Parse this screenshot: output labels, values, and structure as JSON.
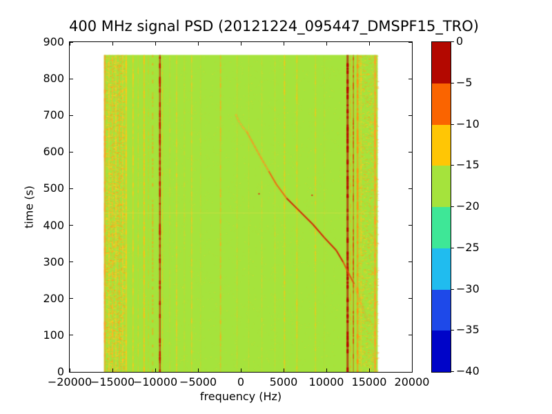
{
  "title": "400 MHz signal PSD (20121224_095447_DMSPF15_TRO)",
  "axes": {
    "xlabel": "frequency (Hz)",
    "ylabel": "time (s)"
  },
  "chart_data": {
    "type": "heatmap",
    "title": "400 MHz signal PSD (20121224_095447_DMSPF15_TRO)",
    "xlabel": "frequency (Hz)",
    "ylabel": "time (s)",
    "xlim": [
      -20000,
      20000
    ],
    "ylim": [
      0,
      900
    ],
    "x_ticks": [
      -20000,
      -15000,
      -10000,
      -5000,
      0,
      5000,
      10000,
      15000,
      20000
    ],
    "x_tick_labels": [
      "−20000",
      "−15000",
      "−10000",
      "−5000",
      "0",
      "5000",
      "10000",
      "15000",
      "20000"
    ],
    "y_ticks": [
      0,
      100,
      200,
      300,
      400,
      500,
      600,
      700,
      800,
      900
    ],
    "y_tick_labels": [
      "0",
      "100",
      "200",
      "300",
      "400",
      "500",
      "600",
      "700",
      "800",
      "900"
    ],
    "grid": false,
    "colorbar": {
      "tick_values": [
        0,
        -5,
        -10,
        -15,
        -20,
        -25,
        -30,
        -35,
        -40
      ],
      "tick_labels": [
        "0",
        "−5",
        "−10",
        "−15",
        "−20",
        "−25",
        "−30",
        "−35",
        "−40"
      ],
      "segment_colors_top_to_bottom": [
        "#B30800",
        "#FA6400",
        "#FFC605",
        "#A5E33C",
        "#3EE797",
        "#20BCEF",
        "#1E49E9",
        "#0004C8"
      ]
    },
    "data_extent": {
      "f_min_hz": -16000,
      "f_max_hz": 16000,
      "t_min_s": 0,
      "t_max_s": 865
    },
    "background_color": "#A5E33C",
    "noise_bands": [
      {
        "f_from": -15900,
        "f_to": -13700,
        "count": 2300,
        "alpha_min": 0.35,
        "alpha_max": 0.95
      },
      {
        "f_from": 13700,
        "f_to": 15950,
        "count": 1700,
        "alpha_min": 0.25,
        "alpha_max": 0.8
      }
    ],
    "rfi_stripes": [
      {
        "f": -15900,
        "color": "#FF9C28",
        "w": 2,
        "a": 0.85
      },
      {
        "f": -15400,
        "color": "#FFC82A",
        "w": 1.5,
        "a": 0.55
      },
      {
        "f": -15000,
        "color": "#FFB828",
        "w": 1.5,
        "a": 0.5
      },
      {
        "f": -14600,
        "color": "#FFC82A",
        "w": 1.5,
        "a": 0.55
      },
      {
        "f": -14200,
        "color": "#FFB020",
        "w": 1.5,
        "a": 0.5
      },
      {
        "f": -13800,
        "color": "#FFC62A",
        "w": 1.5,
        "a": 0.55
      },
      {
        "f": -13400,
        "color": "#FFC818",
        "w": 2,
        "a": 0.8
      },
      {
        "f": -12600,
        "color": "#FFC818",
        "w": 1.5,
        "a": 0.65
      },
      {
        "f": -12000,
        "color": "#FFC818",
        "w": 1,
        "a": 0.45
      },
      {
        "f": -11300,
        "color": "#FFC014",
        "w": 2,
        "a": 0.75
      },
      {
        "f": -10800,
        "color": "#FFC014",
        "w": 1,
        "a": 0.3
      },
      {
        "f": -10300,
        "color": "#FF9C14",
        "w": 2,
        "a": 0.7,
        "dashed": true
      },
      {
        "f": -9450,
        "color": "#C62A02",
        "w": 2.5,
        "a": 0.95
      },
      {
        "f": -9150,
        "color": "#FFC014",
        "w": 1,
        "a": 0.5
      },
      {
        "f": -8300,
        "color": "#FFC822",
        "w": 1,
        "a": 0.25
      },
      {
        "f": -7500,
        "color": "#FFC51E",
        "w": 1.5,
        "a": 0.5
      },
      {
        "f": -6600,
        "color": "#FFC822",
        "w": 1,
        "a": 0.25
      },
      {
        "f": -5750,
        "color": "#FFC51E",
        "w": 1.5,
        "a": 0.45
      },
      {
        "f": -4700,
        "color": "#FFC822",
        "w": 1,
        "a": 0.2
      },
      {
        "f": -2370,
        "color": "#FFAE1C",
        "w": 1.5,
        "a": 0.5
      },
      {
        "f": -440,
        "color": "#FFC51E",
        "w": 1,
        "a": 0.3
      },
      {
        "f": 930,
        "color": "#FFC822",
        "w": 1,
        "a": 0.18
      },
      {
        "f": 2460,
        "color": "#FFC51E",
        "w": 1,
        "a": 0.28
      },
      {
        "f": 3990,
        "color": "#FFC51E",
        "w": 1,
        "a": 0.32
      },
      {
        "f": 5110,
        "color": "#FFC414",
        "w": 1.5,
        "a": 0.55
      },
      {
        "f": 6560,
        "color": "#FFC414",
        "w": 1.5,
        "a": 0.5
      },
      {
        "f": 8730,
        "color": "#FFC414",
        "w": 1.5,
        "a": 0.45
      },
      {
        "f": 9780,
        "color": "#FFC822",
        "w": 1,
        "a": 0.18
      },
      {
        "f": 12480,
        "color": "#B80800",
        "w": 3,
        "a": 0.95
      },
      {
        "f": 12840,
        "color": "#FF9C14",
        "w": 1,
        "a": 0.5
      },
      {
        "f": 13160,
        "color": "#E64008",
        "w": 1.5,
        "a": 0.75
      },
      {
        "f": 13640,
        "color": "#FF9410",
        "w": 2.5,
        "a": 0.85
      },
      {
        "f": 14050,
        "color": "#FFC61E",
        "w": 1.5,
        "a": 0.45
      },
      {
        "f": 15700,
        "color": "#FFA028",
        "w": 2.5,
        "a": 0.85
      }
    ],
    "doppler_track": {
      "points": [
        {
          "f": -600,
          "t": 703
        },
        {
          "f": -280,
          "t": 686
        },
        {
          "f": 280,
          "t": 666
        },
        {
          "f": 680,
          "t": 656
        },
        {
          "f": 1330,
          "t": 628
        },
        {
          "f": 2290,
          "t": 587
        },
        {
          "f": 3260,
          "t": 548
        },
        {
          "f": 4150,
          "t": 512
        },
        {
          "f": 5350,
          "t": 474
        },
        {
          "f": 6560,
          "t": 446
        },
        {
          "f": 8410,
          "t": 403
        },
        {
          "f": 9780,
          "t": 366
        },
        {
          "f": 11150,
          "t": 332
        },
        {
          "f": 11960,
          "t": 300
        },
        {
          "f": 12760,
          "t": 262
        },
        {
          "f": 13240,
          "t": 240
        },
        {
          "f": 13810,
          "t": 202
        },
        {
          "f": 14370,
          "t": 165
        },
        {
          "f": 14860,
          "t": 137
        }
      ]
    },
    "speckle_dots": [
      {
        "f": 2130,
        "t": 486
      },
      {
        "f": 8330,
        "t": 482
      }
    ],
    "horizontal_line": {
      "t": 435
    }
  }
}
